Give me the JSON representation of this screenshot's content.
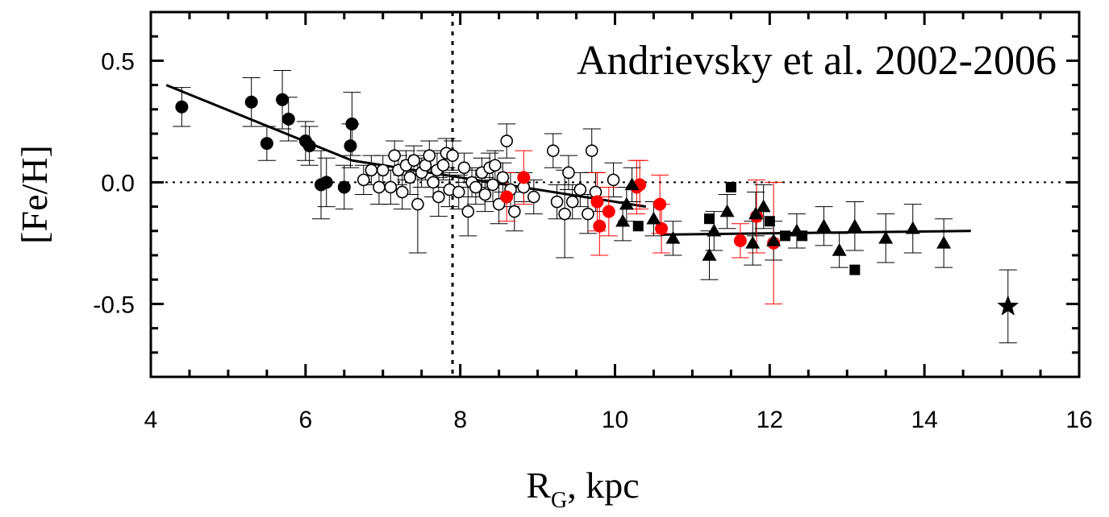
{
  "chart_data": {
    "type": "scatter",
    "annotation": "Andrievsky et al. 2002-2006",
    "xlabel": {
      "main": "R",
      "sub": "G",
      "rest": ", kpc"
    },
    "ylabel": "[Fe/H]",
    "xlim": [
      4,
      16
    ],
    "ylim": [
      -0.8,
      0.7
    ],
    "xticks": [
      4,
      6,
      8,
      10,
      12,
      14,
      16
    ],
    "xtick_labels": [
      "4",
      "6",
      "8",
      "10",
      "12",
      "14",
      "16"
    ],
    "yticks": [
      0.5,
      0.0,
      -0.5
    ],
    "ytick_labels": [
      "0.5",
      "0.0",
      "-0.5"
    ],
    "reference_lines": {
      "horizontal_y": 0.0,
      "vertical_x": 7.9
    },
    "fit_lines": [
      {
        "x": [
          4.2,
          6.6
        ],
        "y": [
          0.4,
          0.09
        ]
      },
      {
        "x": [
          6.6,
          10.4
        ],
        "y": [
          0.09,
          -0.1
        ]
      },
      {
        "x": [
          10.6,
          14.6
        ],
        "y": [
          -0.215,
          -0.2
        ]
      }
    ],
    "series": [
      {
        "marker": "filled-circle",
        "color": "#000000",
        "points": [
          {
            "x": 4.4,
            "y": 0.31,
            "err": 0.08
          },
          {
            "x": 5.3,
            "y": 0.33,
            "err": 0.1
          },
          {
            "x": 5.5,
            "y": 0.16,
            "err": 0.07
          },
          {
            "x": 5.7,
            "y": 0.34,
            "err": 0.12
          },
          {
            "x": 5.78,
            "y": 0.26,
            "err": 0.09
          },
          {
            "x": 6.0,
            "y": 0.17,
            "err": 0.08
          },
          {
            "x": 6.05,
            "y": 0.15,
            "err": 0.08
          },
          {
            "x": 6.2,
            "y": -0.01,
            "err": 0.14
          },
          {
            "x": 6.27,
            "y": 0.0,
            "err": 0.1
          },
          {
            "x": 6.5,
            "y": -0.02,
            "err": 0.09
          },
          {
            "x": 6.58,
            "y": 0.15,
            "err": 0.09
          },
          {
            "x": 6.6,
            "y": 0.24,
            "err": 0.13
          }
        ]
      },
      {
        "marker": "open-circle",
        "color": "#000000",
        "points": [
          {
            "x": 6.75,
            "y": 0.01,
            "err": 0.06
          },
          {
            "x": 6.85,
            "y": 0.05,
            "err": 0.06
          },
          {
            "x": 6.95,
            "y": -0.02,
            "err": 0.07
          },
          {
            "x": 7.0,
            "y": 0.05,
            "err": 0.06
          },
          {
            "x": 7.1,
            "y": -0.02,
            "err": 0.07
          },
          {
            "x": 7.15,
            "y": 0.11,
            "err": 0.06
          },
          {
            "x": 7.2,
            "y": 0.05,
            "err": 0.06
          },
          {
            "x": 7.25,
            "y": -0.04,
            "err": 0.07
          },
          {
            "x": 7.3,
            "y": 0.07,
            "err": 0.06
          },
          {
            "x": 7.35,
            "y": 0.02,
            "err": 0.07
          },
          {
            "x": 7.4,
            "y": 0.09,
            "err": 0.06
          },
          {
            "x": 7.45,
            "y": -0.09,
            "err": 0.2
          },
          {
            "x": 7.5,
            "y": 0.04,
            "err": 0.06
          },
          {
            "x": 7.55,
            "y": 0.07,
            "err": 0.06
          },
          {
            "x": 7.6,
            "y": 0.11,
            "err": 0.06
          },
          {
            "x": 7.65,
            "y": 0.0,
            "err": 0.06
          },
          {
            "x": 7.7,
            "y": 0.05,
            "err": 0.07
          },
          {
            "x": 7.72,
            "y": -0.06,
            "err": 0.08
          },
          {
            "x": 7.78,
            "y": 0.07,
            "err": 0.06
          },
          {
            "x": 7.82,
            "y": 0.12,
            "err": 0.06
          },
          {
            "x": 7.86,
            "y": -0.03,
            "err": 0.07
          },
          {
            "x": 7.9,
            "y": 0.11,
            "err": 0.06
          },
          {
            "x": 7.98,
            "y": -0.04,
            "err": 0.07
          },
          {
            "x": 8.05,
            "y": 0.06,
            "err": 0.06
          },
          {
            "x": 8.1,
            "y": -0.12,
            "err": 0.1
          },
          {
            "x": 8.15,
            "y": 0.0,
            "err": 0.06
          },
          {
            "x": 8.2,
            "y": -0.02,
            "err": 0.07
          },
          {
            "x": 8.28,
            "y": 0.04,
            "err": 0.06
          },
          {
            "x": 8.32,
            "y": -0.05,
            "err": 0.07
          },
          {
            "x": 8.38,
            "y": 0.06,
            "err": 0.06
          },
          {
            "x": 8.42,
            "y": -0.01,
            "err": 0.07
          },
          {
            "x": 8.45,
            "y": 0.07,
            "err": 0.06
          },
          {
            "x": 8.5,
            "y": -0.09,
            "err": 0.08
          },
          {
            "x": 8.55,
            "y": 0.02,
            "err": 0.06
          },
          {
            "x": 8.6,
            "y": 0.17,
            "err": 0.07
          },
          {
            "x": 8.65,
            "y": -0.03,
            "err": 0.07
          },
          {
            "x": 8.7,
            "y": -0.12,
            "err": 0.08
          },
          {
            "x": 8.82,
            "y": -0.02,
            "err": 0.06
          },
          {
            "x": 8.95,
            "y": -0.06,
            "err": 0.07
          },
          {
            "x": 9.2,
            "y": 0.13,
            "err": 0.07
          },
          {
            "x": 9.25,
            "y": -0.08,
            "err": 0.07
          },
          {
            "x": 9.35,
            "y": -0.13,
            "err": 0.18
          },
          {
            "x": 9.4,
            "y": 0.04,
            "err": 0.07
          },
          {
            "x": 9.45,
            "y": -0.08,
            "err": 0.07
          },
          {
            "x": 9.55,
            "y": -0.03,
            "err": 0.07
          },
          {
            "x": 9.65,
            "y": -0.13,
            "err": 0.08
          },
          {
            "x": 9.7,
            "y": 0.13,
            "err": 0.09
          },
          {
            "x": 9.75,
            "y": -0.04,
            "err": 0.08
          },
          {
            "x": 9.98,
            "y": 0.01,
            "err": 0.07
          }
        ]
      },
      {
        "marker": "filled-circle",
        "color": "#ff0000",
        "points": [
          {
            "x": 8.6,
            "y": -0.06,
            "err": 0.1
          },
          {
            "x": 8.82,
            "y": 0.02,
            "err": 0.11
          },
          {
            "x": 9.77,
            "y": -0.08,
            "err": 0.12
          },
          {
            "x": 9.8,
            "y": -0.18,
            "err": 0.12
          },
          {
            "x": 9.92,
            "y": -0.12,
            "err": 0.1
          },
          {
            "x": 10.28,
            "y": -0.02,
            "err": 0.11
          },
          {
            "x": 10.32,
            "y": -0.01,
            "err": 0.1
          },
          {
            "x": 10.58,
            "y": -0.09,
            "err": 0.12
          },
          {
            "x": 10.6,
            "y": -0.19,
            "err": 0.1
          },
          {
            "x": 11.62,
            "y": -0.24,
            "err": 0.07
          },
          {
            "x": 11.83,
            "y": -0.14,
            "err": 0.15
          },
          {
            "x": 12.05,
            "y": -0.25,
            "err": 0.25
          }
        ]
      },
      {
        "marker": "filled-triangle",
        "color": "#000000",
        "points": [
          {
            "x": 10.1,
            "y": -0.16,
            "err": 0.08
          },
          {
            "x": 10.15,
            "y": -0.09,
            "err": 0.07
          },
          {
            "x": 10.22,
            "y": -0.01,
            "err": 0.07
          },
          {
            "x": 10.5,
            "y": -0.15,
            "err": 0.07
          },
          {
            "x": 10.75,
            "y": -0.23,
            "err": 0.07
          },
          {
            "x": 11.22,
            "y": -0.3,
            "err": 0.1
          },
          {
            "x": 11.28,
            "y": -0.2,
            "err": 0.08
          },
          {
            "x": 11.45,
            "y": -0.12,
            "err": 0.07
          },
          {
            "x": 11.78,
            "y": -0.25,
            "err": 0.09
          },
          {
            "x": 11.82,
            "y": -0.13,
            "err": 0.09
          },
          {
            "x": 11.92,
            "y": -0.1,
            "err": 0.09
          },
          {
            "x": 12.05,
            "y": -0.24,
            "err": 0.08
          },
          {
            "x": 12.35,
            "y": -0.2,
            "err": 0.07
          },
          {
            "x": 12.7,
            "y": -0.18,
            "err": 0.08
          },
          {
            "x": 12.9,
            "y": -0.28,
            "err": 0.07
          },
          {
            "x": 13.1,
            "y": -0.18,
            "err": 0.1
          },
          {
            "x": 13.5,
            "y": -0.23,
            "err": 0.1
          },
          {
            "x": 13.85,
            "y": -0.19,
            "err": 0.1
          },
          {
            "x": 14.25,
            "y": -0.25,
            "err": 0.1
          }
        ]
      },
      {
        "marker": "filled-square",
        "color": "#000000",
        "points": [
          {
            "x": 10.3,
            "y": -0.18,
            "err": 0
          },
          {
            "x": 11.22,
            "y": -0.15,
            "err": 0
          },
          {
            "x": 11.5,
            "y": -0.02,
            "err": 0
          },
          {
            "x": 12.0,
            "y": -0.16,
            "err": 0
          },
          {
            "x": 12.2,
            "y": -0.22,
            "err": 0
          },
          {
            "x": 12.42,
            "y": -0.22,
            "err": 0
          },
          {
            "x": 13.1,
            "y": -0.36,
            "err": 0
          }
        ]
      },
      {
        "marker": "star",
        "color": "#000000",
        "points": [
          {
            "x": 15.08,
            "y": -0.51,
            "err": 0.15
          }
        ]
      }
    ]
  }
}
